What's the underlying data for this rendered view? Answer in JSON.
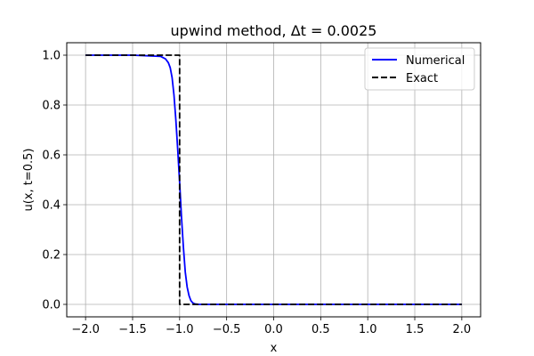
{
  "chart_data": {
    "type": "line",
    "title": "upwind method, Δt = 0.0025",
    "xlabel": "x",
    "ylabel": "u(x, t=0.5)",
    "xlim": [
      -2.2,
      2.2
    ],
    "ylim": [
      -0.05,
      1.05
    ],
    "xticks": [
      -2.0,
      -1.5,
      -1.0,
      -0.5,
      0.0,
      0.5,
      1.0,
      1.5,
      2.0
    ],
    "xtick_labels": [
      "−2.0",
      "−1.5",
      "−1.0",
      "−0.5",
      "0.0",
      "0.5",
      "1.0",
      "1.5",
      "2.0"
    ],
    "yticks": [
      0.0,
      0.2,
      0.4,
      0.6,
      0.8,
      1.0
    ],
    "ytick_labels": [
      "0.0",
      "0.2",
      "0.4",
      "0.6",
      "0.8",
      "1.0"
    ],
    "grid": true,
    "legend_position": "top-right",
    "series": [
      {
        "name": "Numerical",
        "color": "#0000ff",
        "style": "solid",
        "x": [
          -2.0,
          -1.5,
          -1.2,
          -1.15,
          -1.12,
          -1.1,
          -1.08,
          -1.06,
          -1.04,
          -1.02,
          -1.0,
          -0.98,
          -0.96,
          -0.94,
          -0.92,
          -0.9,
          -0.88,
          -0.86,
          -0.84,
          -0.8,
          -0.5,
          0.0,
          0.5,
          1.0,
          1.5,
          2.0
        ],
        "y": [
          1.0,
          1.0,
          0.995,
          0.985,
          0.97,
          0.95,
          0.91,
          0.84,
          0.74,
          0.62,
          0.49,
          0.35,
          0.23,
          0.13,
          0.07,
          0.035,
          0.015,
          0.006,
          0.002,
          0.0,
          0.0,
          0.0,
          0.0,
          0.0,
          0.0,
          0.0
        ]
      },
      {
        "name": "Exact",
        "color": "#000000",
        "style": "dashed",
        "x": [
          -2.0,
          -1.0,
          -1.0,
          2.0
        ],
        "y": [
          1.0,
          1.0,
          0.0,
          0.0
        ]
      }
    ]
  }
}
